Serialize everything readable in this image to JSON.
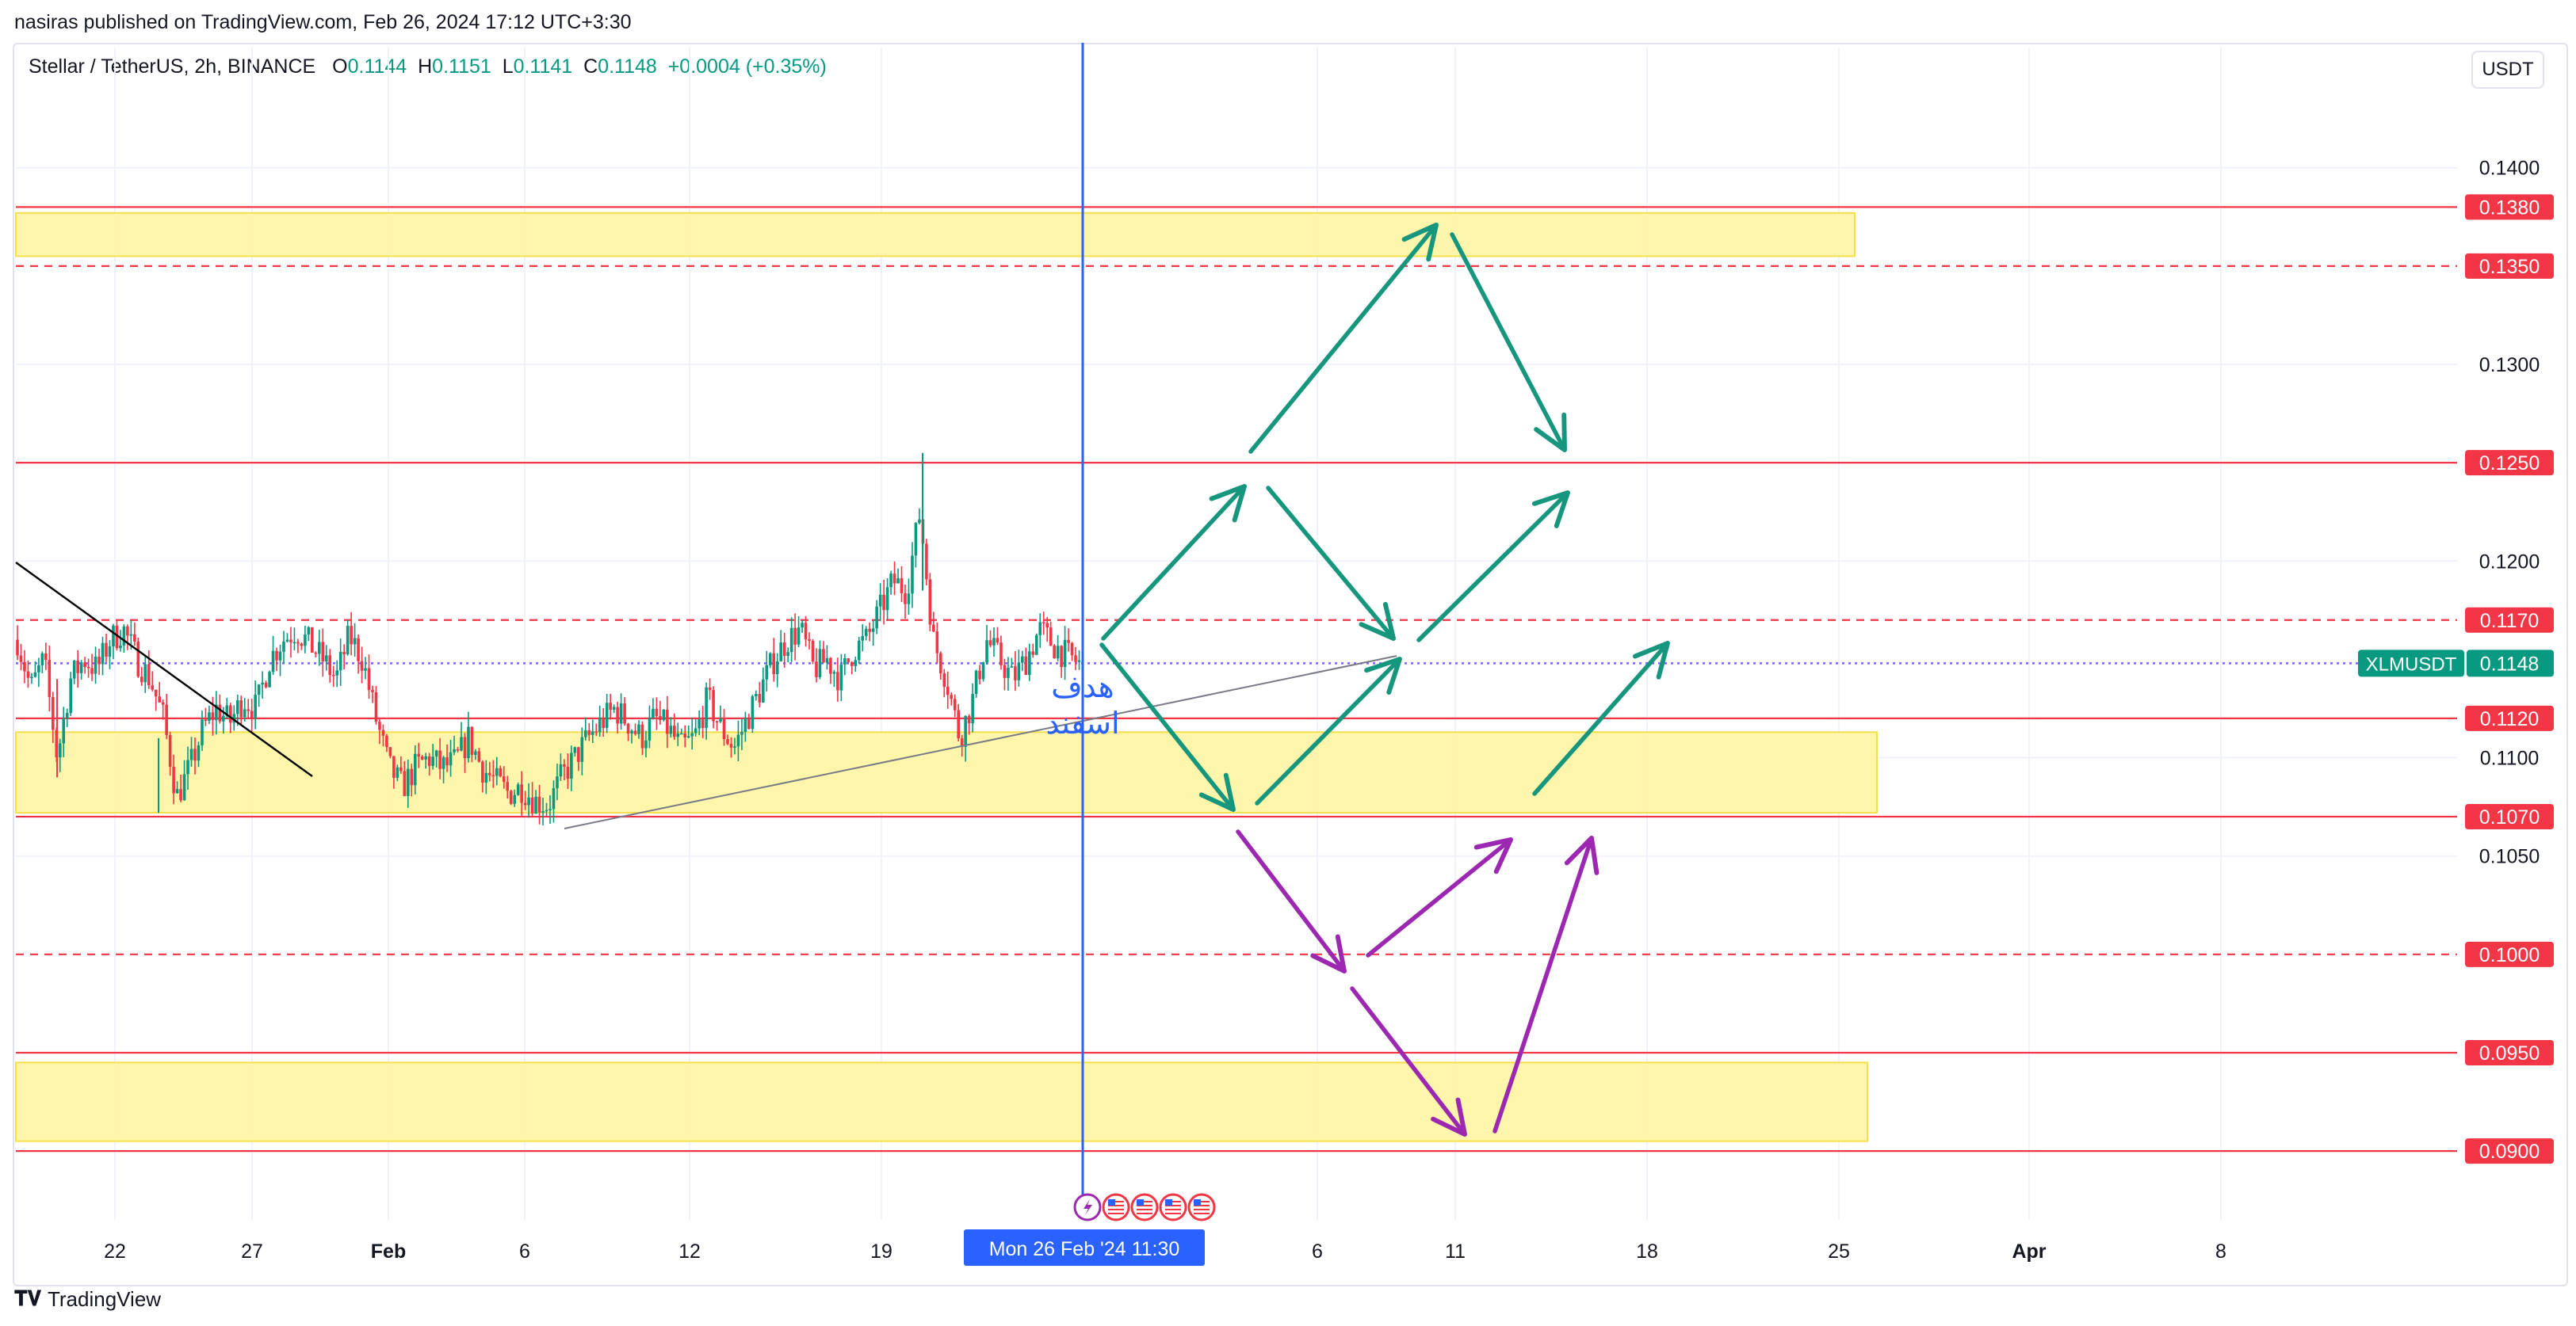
{
  "header": {
    "publisher_line": "nasiras published on TradingView.com, Feb 26, 2024 17:12 UTC+3:30"
  },
  "legend": {
    "symbol": "Stellar / TetherUS, 2h, BINANCE",
    "open_label": "O",
    "open": "0.1144",
    "high_label": "H",
    "high": "0.1151",
    "low_label": "L",
    "low": "0.1141",
    "close_label": "C",
    "close": "0.1148",
    "change": "+0.0004 (+0.35%)"
  },
  "currency": "USDT",
  "footer": {
    "brand": "TradingView",
    "logo_icon": "tradingview-logo-icon"
  },
  "colors": {
    "up": "#089981",
    "down": "#f23645",
    "level_line": "#f23645",
    "zone_fill": "#fff59d",
    "arrow_green": "#17967e",
    "arrow_purple": "#9c27b0",
    "cursor_line": "#2962ff"
  },
  "chart_data": {
    "type": "candlestick",
    "title": "",
    "xlabel": "",
    "ylabel": "",
    "ylim": [
      0.0865,
      0.1445
    ],
    "y_axis_ticks": [
      "0.1400",
      "0.1300",
      "0.1200",
      "0.1100",
      "0.1050"
    ],
    "x_axis_ticks": [
      "22",
      "27",
      "Feb",
      "6",
      "12",
      "19",
      "6",
      "11",
      "18",
      "25",
      "Apr",
      "8"
    ],
    "cursor_label": "Mon 26 Feb '24   11:30",
    "price_levels": [
      {
        "label": "0.1380",
        "value": 0.138,
        "style": "solid"
      },
      {
        "label": "0.1350",
        "value": 0.135,
        "style": "dashed"
      },
      {
        "label": "0.1250",
        "value": 0.125,
        "style": "solid"
      },
      {
        "label": "0.1170",
        "value": 0.117,
        "style": "dashed"
      },
      {
        "label": "0.1120",
        "value": 0.112,
        "style": "solid"
      },
      {
        "label": "0.1070",
        "value": 0.107,
        "style": "solid"
      },
      {
        "label": "0.1000",
        "value": 0.1,
        "style": "dashed"
      },
      {
        "label": "0.0950",
        "value": 0.095,
        "style": "solid"
      },
      {
        "label": "0.0900",
        "value": 0.09,
        "style": "solid"
      }
    ],
    "current_price": {
      "symbol": "XLMUSDT",
      "label": "0.1148",
      "value": 0.1148
    },
    "zones": [
      {
        "top": 0.1377,
        "bottom": 0.1355
      },
      {
        "top": 0.1113,
        "bottom": 0.1072
      },
      {
        "top": 0.0945,
        "bottom": 0.0905
      }
    ],
    "annotation_text": [
      "هدف",
      "اسفند"
    ],
    "event_icons": [
      "lightning-icon",
      "us-flag-icon",
      "us-flag-icon",
      "us-flag-icon",
      "us-flag-icon"
    ],
    "price_path": [
      0.116,
      0.1135,
      0.115,
      0.11,
      0.114,
      0.115,
      0.1145,
      0.116,
      0.1165,
      0.115,
      0.114,
      0.112,
      0.108,
      0.1095,
      0.1115,
      0.1125,
      0.1118,
      0.113,
      0.1125,
      0.115,
      0.116,
      0.1165,
      0.1158,
      0.115,
      0.114,
      0.1162,
      0.115,
      0.112,
      0.1095,
      0.1085,
      0.1095,
      0.11,
      0.1095,
      0.1098,
      0.111,
      0.1095,
      0.1088,
      0.1082,
      0.1085,
      0.1078,
      0.1076,
      0.109,
      0.11,
      0.111,
      0.1118,
      0.1125,
      0.1118,
      0.111,
      0.112,
      0.1115,
      0.1105,
      0.111,
      0.113,
      0.1115,
      0.1105,
      0.112,
      0.1135,
      0.115,
      0.116,
      0.1165,
      0.1145,
      0.115,
      0.114,
      0.1155,
      0.116,
      0.1175,
      0.119,
      0.1185,
      0.1225,
      0.116,
      0.114,
      0.111,
      0.113,
      0.116,
      0.115,
      0.114,
      0.115,
      0.1165,
      0.1158,
      0.1152,
      0.1148
    ]
  }
}
